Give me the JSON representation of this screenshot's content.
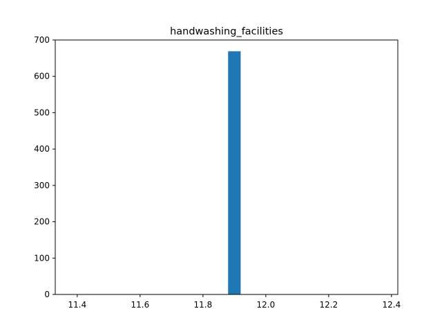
{
  "chart_data": {
    "type": "bar",
    "title": "handwashing_facilities",
    "xlabel": "",
    "ylabel": "",
    "bars": [
      {
        "x_start": 11.88,
        "x_end": 11.92,
        "value": 669
      }
    ],
    "xlim": [
      11.33,
      12.42
    ],
    "ylim": [
      0,
      700
    ],
    "xticks": [
      11.4,
      11.6,
      11.8,
      12.0,
      12.2,
      12.4
    ],
    "xtick_labels": [
      "11.4",
      "11.6",
      "11.8",
      "12.0",
      "12.2",
      "12.4"
    ],
    "yticks": [
      0,
      100,
      200,
      300,
      400,
      500,
      600,
      700
    ],
    "ytick_labels": [
      "0",
      "100",
      "200",
      "300",
      "400",
      "500",
      "600",
      "700"
    ],
    "grid": false,
    "legend": "none",
    "bar_color": "#1f77b4"
  }
}
